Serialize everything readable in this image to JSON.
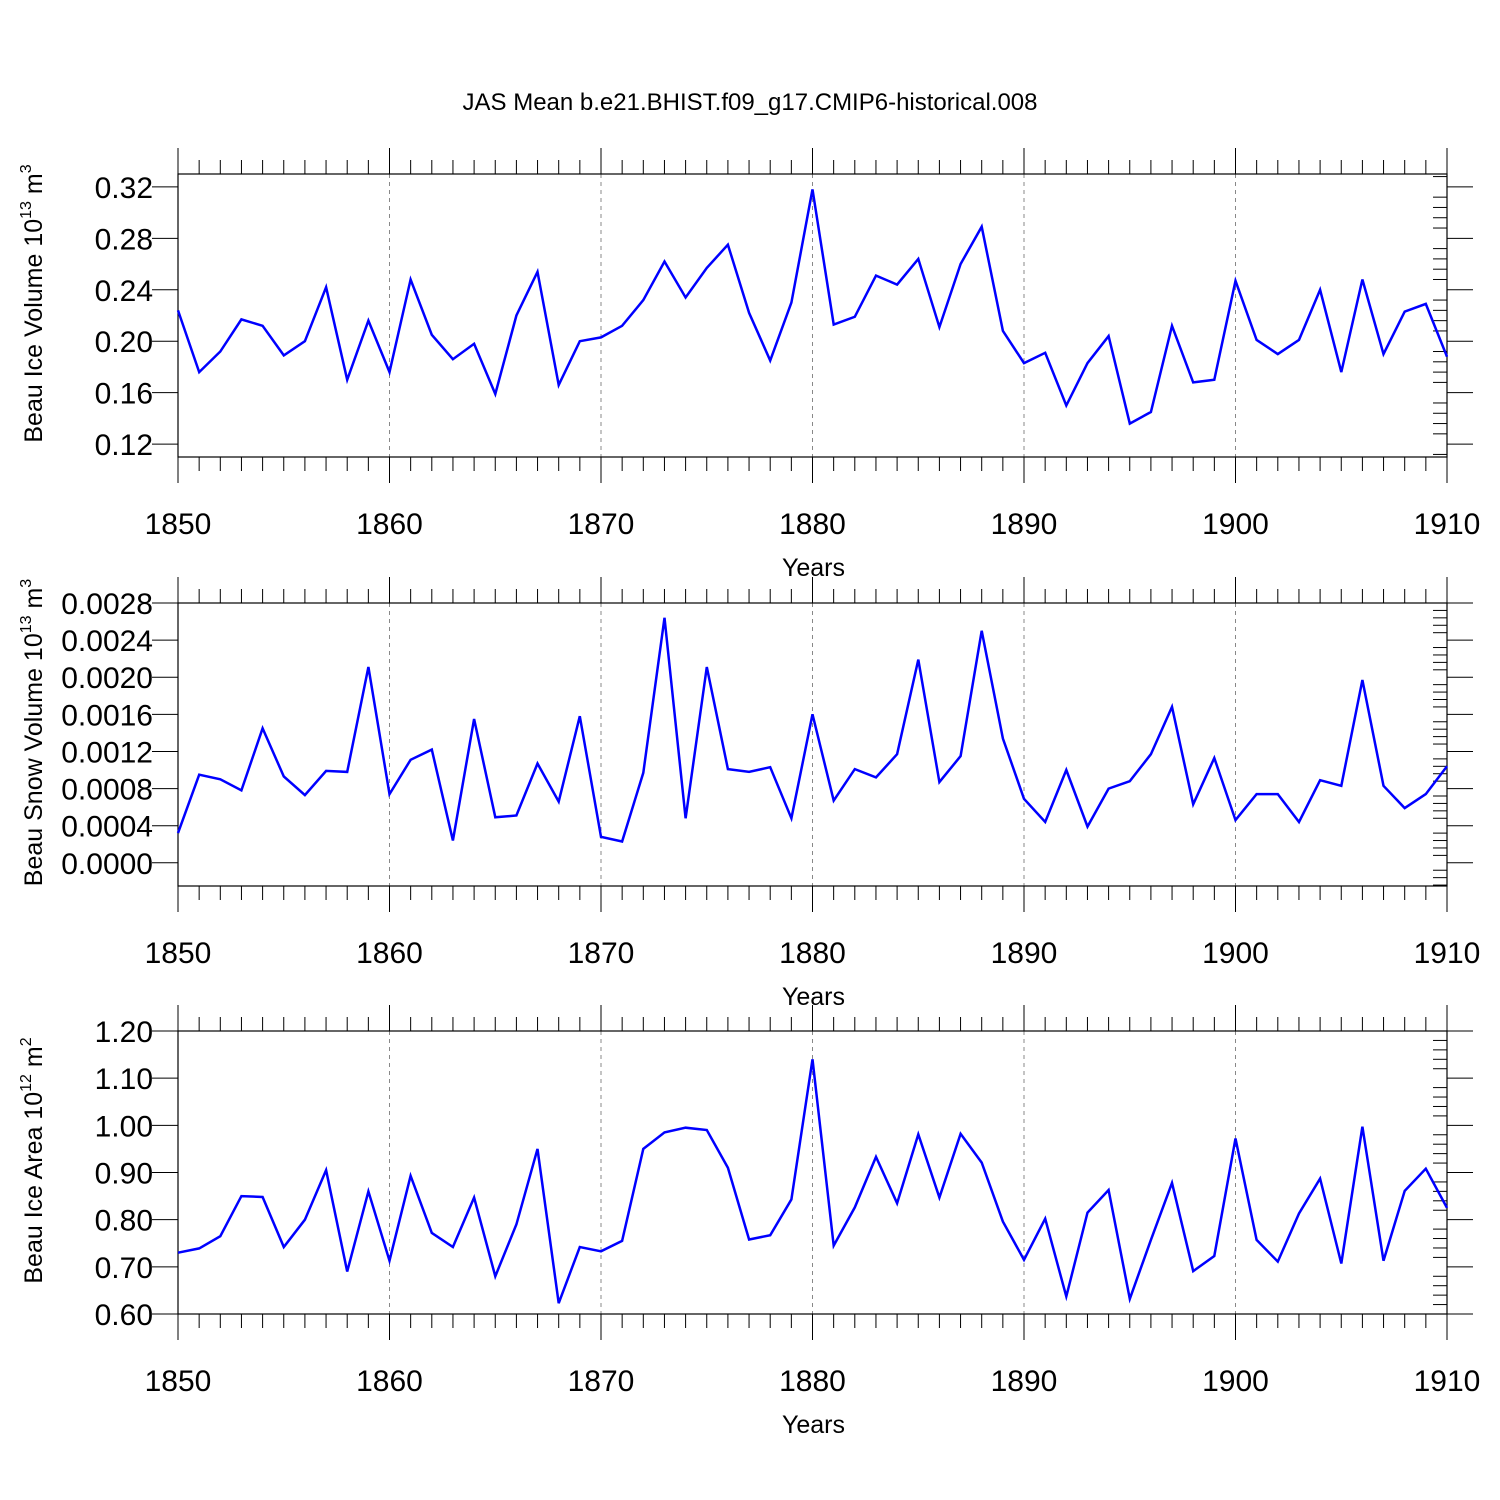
{
  "title": "JAS Mean b.e21.BHIST.f09_g17.CMIP6-historical.008",
  "colors": {
    "line": "#0000ff",
    "axis": "#000000",
    "grid": "#888888"
  },
  "chart_data": [
    {
      "type": "line",
      "xlabel": "Years",
      "ylabel": {
        "text": "Beau Ice Volume 10",
        "exponent": "13",
        "unit": " m",
        "unit_exponent": "3"
      },
      "xlim": [
        1850,
        1910
      ],
      "ylim": [
        0.11,
        0.33
      ],
      "xticks": [
        1850,
        1860,
        1870,
        1880,
        1890,
        1900,
        1910
      ],
      "yticks": [
        "0.12",
        "0.16",
        "0.20",
        "0.24",
        "0.28",
        "0.32"
      ],
      "x": [
        1850,
        1851,
        1852,
        1853,
        1854,
        1855,
        1856,
        1857,
        1858,
        1859,
        1860,
        1861,
        1862,
        1863,
        1864,
        1865,
        1866,
        1867,
        1868,
        1869,
        1870,
        1871,
        1872,
        1873,
        1874,
        1875,
        1876,
        1877,
        1878,
        1879,
        1880,
        1881,
        1882,
        1883,
        1884,
        1885,
        1886,
        1887,
        1888,
        1889,
        1890,
        1891,
        1892,
        1893,
        1894,
        1895,
        1896,
        1897,
        1898,
        1899,
        1900,
        1901,
        1902,
        1903,
        1904,
        1905,
        1906,
        1907,
        1908,
        1909,
        1910
      ],
      "series": [
        {
          "name": "Beau Ice Volume",
          "values": [
            0.224,
            0.176,
            0.192,
            0.217,
            0.212,
            0.189,
            0.2,
            0.242,
            0.17,
            0.216,
            0.176,
            0.248,
            0.205,
            0.186,
            0.198,
            0.159,
            0.22,
            0.254,
            0.166,
            0.2,
            0.203,
            0.212,
            0.232,
            0.262,
            0.234,
            0.257,
            0.275,
            0.222,
            0.185,
            0.23,
            0.318,
            0.213,
            0.219,
            0.251,
            0.244,
            0.264,
            0.211,
            0.26,
            0.289,
            0.208,
            0.183,
            0.191,
            0.15,
            0.183,
            0.204,
            0.136,
            0.145,
            0.212,
            0.168,
            0.17,
            0.247,
            0.201,
            0.19,
            0.201,
            0.24,
            0.176,
            0.248,
            0.19,
            0.223,
            0.229,
            0.188
          ]
        }
      ]
    },
    {
      "type": "line",
      "xlabel": "Years",
      "ylabel": {
        "text": "Beau Snow Volume 10",
        "exponent": "13",
        "unit": " m",
        "unit_exponent": "3"
      },
      "xlim": [
        1850,
        1910
      ],
      "ylim": [
        -0.00025,
        0.0028
      ],
      "xticks": [
        1850,
        1860,
        1870,
        1880,
        1890,
        1900,
        1910
      ],
      "yticks": [
        "0.0000",
        "0.0004",
        "0.0008",
        "0.0012",
        "0.0016",
        "0.0020",
        "0.0024",
        "0.0028"
      ],
      "x": [
        1850,
        1851,
        1852,
        1853,
        1854,
        1855,
        1856,
        1857,
        1858,
        1859,
        1860,
        1861,
        1862,
        1863,
        1864,
        1865,
        1866,
        1867,
        1868,
        1869,
        1870,
        1871,
        1872,
        1873,
        1874,
        1875,
        1876,
        1877,
        1878,
        1879,
        1880,
        1881,
        1882,
        1883,
        1884,
        1885,
        1886,
        1887,
        1888,
        1889,
        1890,
        1891,
        1892,
        1893,
        1894,
        1895,
        1896,
        1897,
        1898,
        1899,
        1900,
        1901,
        1902,
        1903,
        1904,
        1905,
        1906,
        1907,
        1908,
        1909,
        1910
      ],
      "series": [
        {
          "name": "Beau Snow Volume",
          "values": [
            0.00032,
            0.00095,
            0.0009,
            0.00078,
            0.00145,
            0.00093,
            0.00073,
            0.00099,
            0.00098,
            0.00211,
            0.00074,
            0.00111,
            0.00122,
            0.00024,
            0.00155,
            0.00049,
            0.00051,
            0.00107,
            0.00066,
            0.00158,
            0.00028,
            0.00023,
            0.00097,
            0.00264,
            0.00048,
            0.00211,
            0.00101,
            0.00098,
            0.00103,
            0.00048,
            0.0016,
            0.00067,
            0.00101,
            0.00092,
            0.00117,
            0.00219,
            0.00087,
            0.00115,
            0.0025,
            0.00134,
            0.00069,
            0.00044,
            0.001,
            0.00039,
            0.0008,
            0.00088,
            0.00117,
            0.00168,
            0.00063,
            0.00113,
            0.00046,
            0.00074,
            0.00074,
            0.00044,
            0.00089,
            0.00083,
            0.00197,
            0.00083,
            0.00059,
            0.00074,
            0.00104
          ]
        }
      ]
    },
    {
      "type": "line",
      "xlabel": "Years",
      "ylabel": {
        "text": "Beau Ice Area 10",
        "exponent": "12",
        "unit": " m",
        "unit_exponent": "2"
      },
      "xlim": [
        1850,
        1910
      ],
      "ylim": [
        0.6,
        1.2
      ],
      "xticks": [
        1850,
        1860,
        1870,
        1880,
        1890,
        1900,
        1910
      ],
      "yticks": [
        "0.60",
        "0.70",
        "0.80",
        "0.90",
        "1.00",
        "1.10",
        "1.20"
      ],
      "x": [
        1850,
        1851,
        1852,
        1853,
        1854,
        1855,
        1856,
        1857,
        1858,
        1859,
        1860,
        1861,
        1862,
        1863,
        1864,
        1865,
        1866,
        1867,
        1868,
        1869,
        1870,
        1871,
        1872,
        1873,
        1874,
        1875,
        1876,
        1877,
        1878,
        1879,
        1880,
        1881,
        1882,
        1883,
        1884,
        1885,
        1886,
        1887,
        1888,
        1889,
        1890,
        1891,
        1892,
        1893,
        1894,
        1895,
        1896,
        1897,
        1898,
        1899,
        1900,
        1901,
        1902,
        1903,
        1904,
        1905,
        1906,
        1907,
        1908,
        1909,
        1910
      ],
      "series": [
        {
          "name": "Beau Ice Area",
          "values": [
            0.73,
            0.739,
            0.765,
            0.85,
            0.848,
            0.742,
            0.8,
            0.905,
            0.69,
            0.86,
            0.713,
            0.893,
            0.772,
            0.742,
            0.847,
            0.68,
            0.79,
            0.95,
            0.623,
            0.742,
            0.733,
            0.755,
            0.95,
            0.985,
            0.995,
            0.99,
            0.91,
            0.758,
            0.767,
            0.843,
            1.14,
            0.745,
            0.826,
            0.933,
            0.835,
            0.981,
            0.847,
            0.982,
            0.921,
            0.796,
            0.715,
            0.802,
            0.637,
            0.815,
            0.863,
            0.632,
            0.757,
            0.878,
            0.691,
            0.723,
            0.972,
            0.757,
            0.711,
            0.813,
            0.887,
            0.707,
            0.997,
            0.713,
            0.861,
            0.908,
            0.825
          ]
        }
      ]
    }
  ]
}
